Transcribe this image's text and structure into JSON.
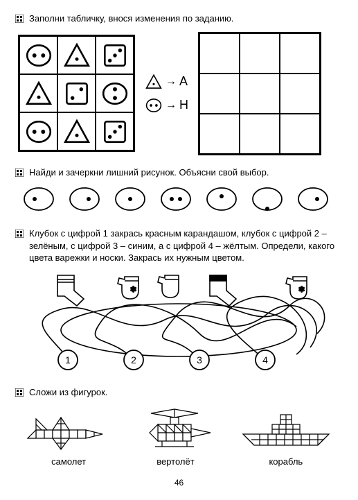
{
  "page_number": "46",
  "stroke": "#000000",
  "fill_white": "#ffffff",
  "task1": {
    "instruction": "Заполни табличку, внося изменения по заданию.",
    "grid": [
      [
        "circle2h",
        "triangle",
        "dice3"
      ],
      [
        "triangle",
        "dice2",
        "circle2v"
      ],
      [
        "circle2h",
        "triangle",
        "dice3"
      ]
    ],
    "legend": [
      {
        "shape": "triangle",
        "arrow": "→",
        "letter": "А"
      },
      {
        "shape": "circle2h",
        "arrow": "→",
        "letter": "Н"
      }
    ]
  },
  "task2": {
    "instruction": "Найди и зачеркни лишний рисунок. Объясни свой выбор.",
    "circles": [
      {
        "dot": "left"
      },
      {
        "dot": "right"
      },
      {
        "dot": "center"
      },
      {
        "dot": "two"
      },
      {
        "dot": "center-high"
      },
      {
        "dot": "below"
      },
      {
        "dot": "right"
      }
    ]
  },
  "task3": {
    "instruction": "Клубок с цифрой 1 закрась красным карандашом, клубок с цифрой 2 – зелёным, с цифрой 3 – синим, а с цифрой 4 – жёлтым. Определи, какого цвета варежки и носки. Закрась их нужным цветом.",
    "balls": [
      "1",
      "2",
      "3",
      "4"
    ]
  },
  "task4": {
    "instruction": "Сложи из фигурок.",
    "figures": [
      {
        "label": "самолет"
      },
      {
        "label": "вертолёт"
      },
      {
        "label": "корабль"
      }
    ]
  }
}
